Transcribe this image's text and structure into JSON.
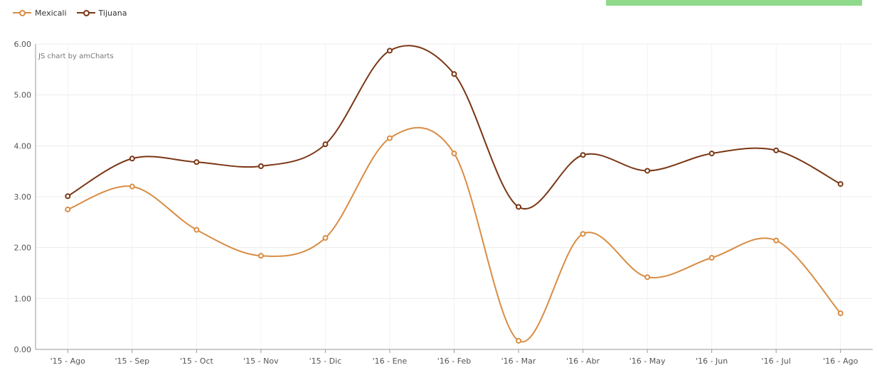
{
  "legend": {
    "items": [
      {
        "label": "Mexicali",
        "color": "#d98c43"
      },
      {
        "label": "Tijuana",
        "color": "#7a3614"
      }
    ]
  },
  "credit_text": "JS chart by amCharts",
  "chart_data": {
    "type": "line",
    "x": [
      "'15 - Ago",
      "'15 - Sep",
      "'15 - Oct",
      "'15 - Nov",
      "'15 - Dic",
      "'16 - Ene",
      "'16 - Feb",
      "'16 - Mar",
      "'16 - Abr",
      "'16 - May",
      "'16 - Jun",
      "'16 - Jul",
      "'16 - Ago"
    ],
    "series": [
      {
        "name": "Mexicali",
        "color": "#d98c43",
        "values": [
          2.75,
          3.2,
          2.35,
          1.84,
          2.19,
          4.15,
          3.85,
          0.17,
          2.27,
          1.42,
          1.8,
          2.14,
          0.71
        ]
      },
      {
        "name": "Tijuana",
        "color": "#7a3614",
        "values": [
          3.01,
          3.75,
          3.68,
          3.6,
          4.03,
          5.87,
          5.41,
          2.8,
          3.82,
          3.51,
          3.85,
          3.91,
          3.25
        ]
      }
    ],
    "ylim": [
      0,
      6
    ],
    "yticks": [
      "0.00",
      "1.00",
      "2.00",
      "3.00",
      "4.00",
      "5.00",
      "6.00"
    ],
    "grid": true,
    "legend_position": "top-left",
    "smoothed": true
  }
}
